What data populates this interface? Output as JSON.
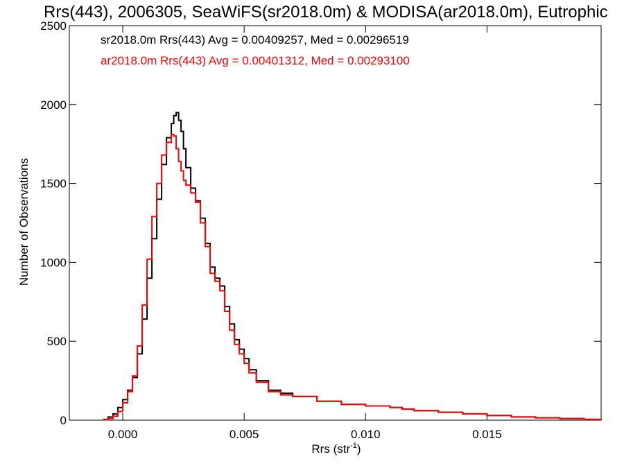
{
  "chart_data": {
    "type": "line",
    "title": "Rrs(443), 2006305, SeaWiFS(sr2018.0m) & MODISA(ar2018.0m), Eutrophic",
    "xlabel": "Rrs (str",
    "xlabel_sup": "-1",
    "xlabel_end": ")",
    "ylabel": "Number of Observations",
    "xlim": [
      -0.0022,
      0.0197
    ],
    "ylim": [
      0,
      2500
    ],
    "x_ticks": [
      0.0,
      0.005,
      0.01,
      0.015
    ],
    "x_tick_labels": [
      "0.000",
      "0.005",
      "0.010",
      "0.015"
    ],
    "y_ticks": [
      0,
      500,
      1000,
      1500,
      2000,
      2500
    ],
    "y_tick_labels": [
      "0",
      "500",
      "1000",
      "1500",
      "2000",
      "2500"
    ],
    "legend_placement": "top-left",
    "series": [
      {
        "name": "sr2018.0m Rrs(443) Avg = 0.00409257, Med = 0.00296519",
        "color": "#000000",
        "x": [
          -0.0008,
          -0.0006,
          -0.0004,
          -0.0002,
          0.0,
          0.0002,
          0.0004,
          0.0006,
          0.0008,
          0.001,
          0.0012,
          0.0014,
          0.0016,
          0.0018,
          0.002,
          0.0021,
          0.0022,
          0.0023,
          0.0024,
          0.0025,
          0.0026,
          0.0028,
          0.003,
          0.0032,
          0.0034,
          0.0036,
          0.0038,
          0.004,
          0.0042,
          0.0044,
          0.0046,
          0.0048,
          0.005,
          0.0052,
          0.0055,
          0.006,
          0.0065,
          0.007,
          0.008,
          0.009,
          0.01,
          0.011,
          0.0115,
          0.012,
          0.013,
          0.014,
          0.015,
          0.016,
          0.017,
          0.018,
          0.019,
          0.0197
        ],
        "y": [
          5,
          20,
          40,
          80,
          130,
          190,
          270,
          420,
          640,
          900,
          1150,
          1400,
          1620,
          1790,
          1880,
          1930,
          1950,
          1900,
          1830,
          1720,
          1600,
          1470,
          1390,
          1280,
          1120,
          970,
          900,
          850,
          720,
          610,
          510,
          450,
          390,
          320,
          250,
          190,
          170,
          150,
          120,
          100,
          90,
          80,
          70,
          60,
          50,
          40,
          30,
          20,
          15,
          10,
          5,
          3
        ]
      },
      {
        "name": "ar2018.0m Rrs(443) Avg = 0.00401312, Med = 0.00293100",
        "color": "#ff0000",
        "x": [
          -0.0008,
          -0.0006,
          -0.0004,
          -0.0002,
          0.0,
          0.0002,
          0.0004,
          0.0006,
          0.0008,
          0.001,
          0.0012,
          0.0014,
          0.0016,
          0.0018,
          0.002,
          0.0021,
          0.0022,
          0.0023,
          0.0024,
          0.0025,
          0.0026,
          0.0028,
          0.003,
          0.0032,
          0.0034,
          0.0036,
          0.0038,
          0.004,
          0.0042,
          0.0044,
          0.0046,
          0.0048,
          0.005,
          0.0052,
          0.0055,
          0.006,
          0.0065,
          0.007,
          0.008,
          0.009,
          0.01,
          0.011,
          0.0115,
          0.012,
          0.013,
          0.014,
          0.015,
          0.016,
          0.017,
          0.018,
          0.019,
          0.0197
        ],
        "y": [
          3,
          10,
          25,
          55,
          110,
          180,
          280,
          470,
          730,
          1020,
          1290,
          1500,
          1680,
          1760,
          1810,
          1800,
          1720,
          1640,
          1580,
          1520,
          1490,
          1440,
          1380,
          1250,
          1100,
          930,
          880,
          820,
          690,
          570,
          480,
          420,
          360,
          300,
          240,
          180,
          160,
          150,
          120,
          100,
          90,
          80,
          70,
          60,
          50,
          40,
          30,
          20,
          15,
          10,
          5,
          3
        ]
      }
    ]
  }
}
